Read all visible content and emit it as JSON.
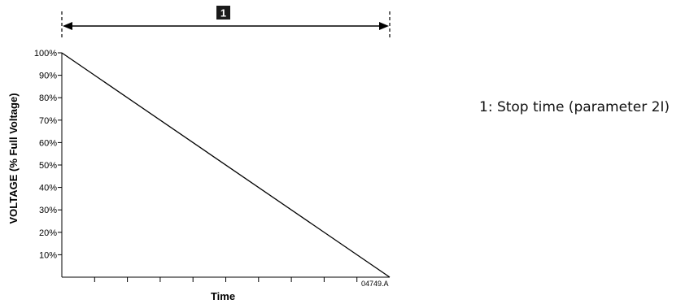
{
  "chart_data": {
    "type": "line",
    "title": "",
    "xlabel": "Time",
    "ylabel": "VOLTAGE (% Full Voltage)",
    "y_ticks": [
      "10%",
      "20%",
      "30%",
      "40%",
      "50%",
      "60%",
      "70%",
      "80%",
      "90%",
      "100%"
    ],
    "ylim": [
      0,
      100
    ],
    "xlim": [
      0,
      10
    ],
    "x_minor_ticks": 9,
    "series": [
      {
        "x": [
          0,
          10
        ],
        "y": [
          100,
          0
        ]
      }
    ],
    "grid": false,
    "annotations": {
      "span_marker": "1",
      "figure_id": "04749.A"
    }
  },
  "legend_note": "1: Stop time (parameter 2I)",
  "colors": {
    "line": "#000000",
    "badge_fill": "#1a1a1a",
    "badge_text": "#ffffff"
  }
}
